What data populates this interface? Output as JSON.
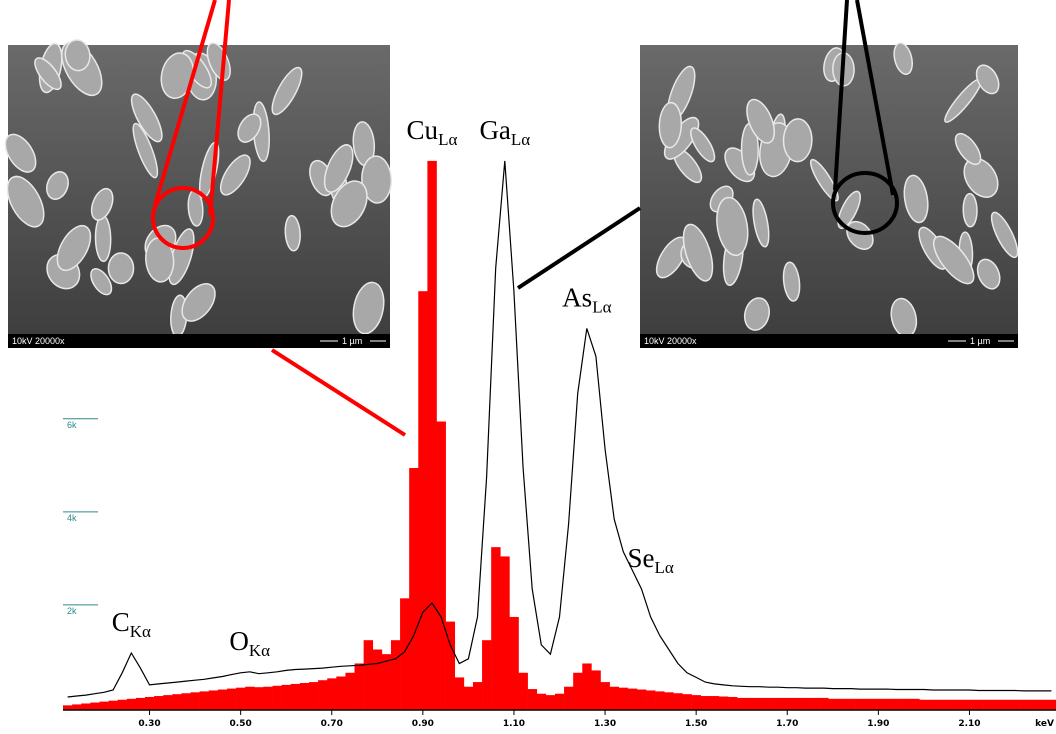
{
  "chart_data": {
    "type": "spectrum",
    "x_label": "keV",
    "x": [
      0.12,
      0.14,
      0.16,
      0.18,
      0.2,
      0.22,
      0.24,
      0.26,
      0.28,
      0.3,
      0.32,
      0.34,
      0.36,
      0.38,
      0.4,
      0.42,
      0.44,
      0.46,
      0.48,
      0.5,
      0.52,
      0.54,
      0.56,
      0.58,
      0.6,
      0.62,
      0.64,
      0.66,
      0.68,
      0.7,
      0.72,
      0.74,
      0.76,
      0.78,
      0.8,
      0.82,
      0.84,
      0.86,
      0.88,
      0.9,
      0.92,
      0.94,
      0.96,
      0.98,
      1.0,
      1.02,
      1.04,
      1.06,
      1.08,
      1.1,
      1.12,
      1.14,
      1.16,
      1.18,
      1.2,
      1.22,
      1.24,
      1.26,
      1.28,
      1.3,
      1.32,
      1.34,
      1.36,
      1.38,
      1.4,
      1.42,
      1.44,
      1.46,
      1.48,
      1.5,
      1.52,
      1.54,
      1.56,
      1.58,
      1.6,
      1.62,
      1.64,
      1.66,
      1.68,
      1.7,
      1.72,
      1.74,
      1.76,
      1.78,
      1.8,
      1.82,
      1.84,
      1.86,
      1.88,
      1.9,
      1.92,
      1.94,
      1.96,
      1.98,
      2.0,
      2.02,
      2.04,
      2.06,
      2.08,
      2.1,
      2.12,
      2.14,
      2.16,
      2.18,
      2.2,
      2.22,
      2.24,
      2.26,
      2.28
    ],
    "series": [
      {
        "color": "#ff0000",
        "style": "filled",
        "values": [
          100,
          120,
          140,
          160,
          180,
          200,
          220,
          240,
          260,
          280,
          300,
          320,
          340,
          360,
          380,
          400,
          420,
          440,
          460,
          480,
          500,
          490,
          500,
          520,
          540,
          560,
          580,
          600,
          640,
          680,
          720,
          800,
          1000,
          1500,
          1300,
          1200,
          1500,
          2400,
          5200,
          9000,
          11800,
          6200,
          1900,
          700,
          500,
          600,
          1500,
          3500,
          3300,
          2000,
          800,
          450,
          350,
          320,
          350,
          500,
          800,
          1000,
          850,
          600,
          500,
          480,
          460,
          440,
          420,
          400,
          380,
          360,
          340,
          320,
          300,
          300,
          290,
          280,
          260,
          260,
          260,
          260,
          260,
          260,
          260,
          260,
          260,
          260,
          240,
          240,
          240,
          240,
          240,
          240,
          240,
          240,
          240,
          240,
          220,
          220,
          220,
          220,
          220,
          220,
          220,
          220,
          220,
          220,
          220,
          220,
          220,
          220,
          220
        ]
      },
      {
        "color": "#000000",
        "style": "outline",
        "values": [
          280,
          300,
          320,
          350,
          380,
          430,
          800,
          1225,
          900,
          540,
          560,
          580,
          600,
          620,
          640,
          660,
          690,
          720,
          760,
          800,
          820,
          780,
          800,
          820,
          850,
          870,
          880,
          890,
          900,
          920,
          940,
          950,
          960,
          980,
          1000,
          1050,
          1100,
          1250,
          1600,
          2100,
          2300,
          2000,
          1400,
          1000,
          1100,
          2000,
          5000,
          9500,
          11800,
          9000,
          5200,
          2600,
          1400,
          1200,
          2000,
          4000,
          6800,
          8200,
          7600,
          5600,
          4100,
          3400,
          3000,
          2600,
          2000,
          1600,
          1300,
          1000,
          800,
          700,
          600,
          560,
          540,
          520,
          510,
          500,
          500,
          490,
          490,
          480,
          480,
          470,
          470,
          470,
          460,
          460,
          460,
          450,
          450,
          450,
          450,
          440,
          440,
          440,
          440,
          430,
          430,
          430,
          430,
          430,
          420,
          420,
          420,
          420,
          420,
          410,
          410,
          410,
          410
        ]
      }
    ],
    "xlim": [
      0.11,
      2.29
    ],
    "ylim": [
      0,
      15000
    ],
    "xticks": [
      {
        "value": 0.3,
        "label": "0.30"
      },
      {
        "value": 0.5,
        "label": "0.50"
      },
      {
        "value": 0.7,
        "label": "0.70"
      },
      {
        "value": 0.9,
        "label": "0.90"
      },
      {
        "value": 1.1,
        "label": "1.10"
      },
      {
        "value": 1.3,
        "label": "1.30"
      },
      {
        "value": 1.5,
        "label": "1.50"
      },
      {
        "value": 1.7,
        "label": "1.70"
      },
      {
        "value": 1.9,
        "label": "1.90"
      },
      {
        "value": 2.1,
        "label": "2.10"
      }
    ],
    "yticks": [
      {
        "value": 2000,
        "label": "2k"
      },
      {
        "value": 4000,
        "label": "4k"
      },
      {
        "value": 6000,
        "label": "6k"
      }
    ],
    "annotations": [
      {
        "text": "C",
        "sub": "Kα",
        "x": 0.26
      },
      {
        "text": "O",
        "sub": "Kα",
        "x": 0.52
      },
      {
        "text": "Cu",
        "sub": "Lα",
        "x": 0.92
      },
      {
        "text": "Ga",
        "sub": "Lα",
        "x": 1.08
      },
      {
        "text": "As",
        "sub": "Lα",
        "x": 1.26
      },
      {
        "text": "Se",
        "sub": "Lα",
        "x": 1.4
      }
    ],
    "inset_caption": "10kV 20000x",
    "inset_scale": "1 µm"
  }
}
